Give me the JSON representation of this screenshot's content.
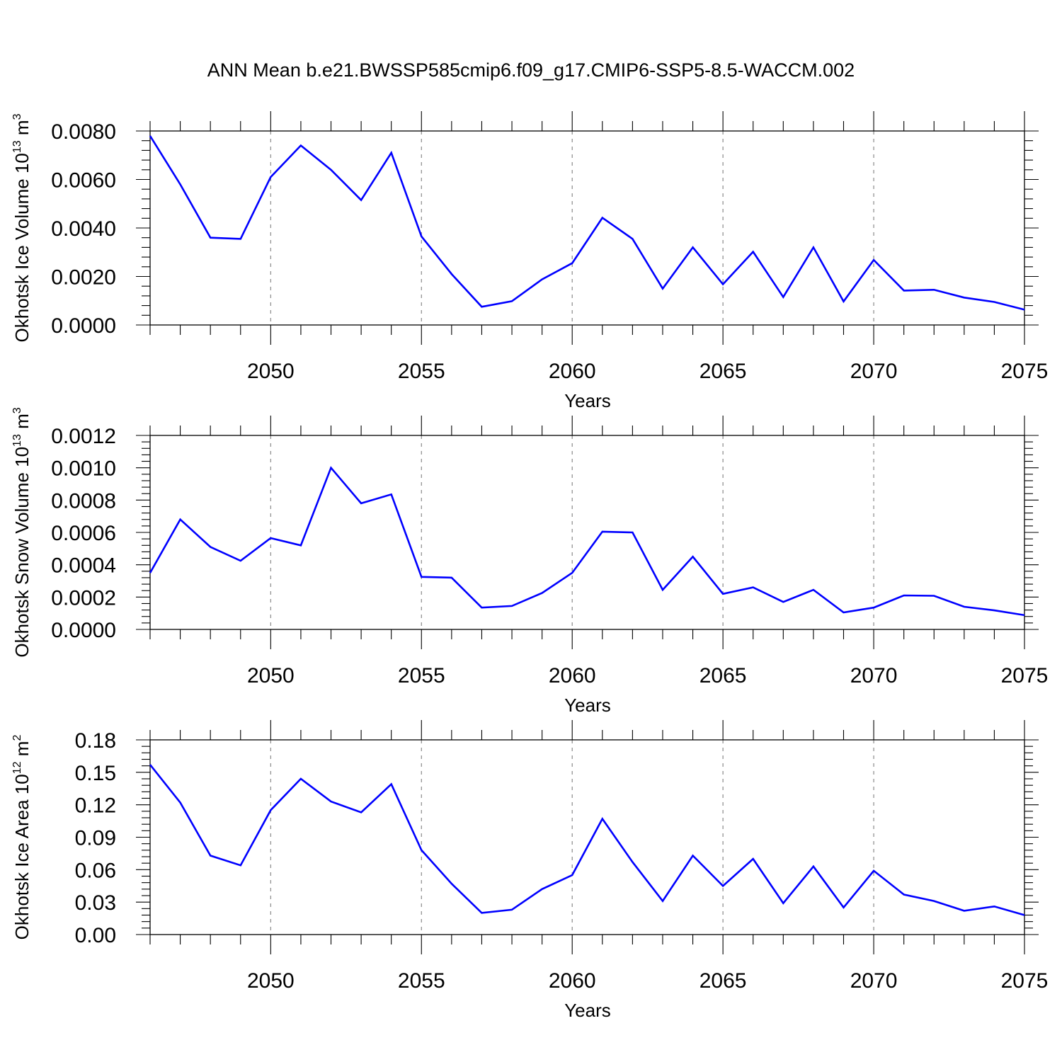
{
  "title": "ANN Mean b.e21.BWSSP585cmip6.f09_g17.CMIP6-SSP5-8.5-WACCM.002",
  "colors": {
    "line": "#0000ff",
    "frame": "#000000",
    "grid": "#8a8a8a"
  },
  "chart_data": [
    {
      "type": "line",
      "ylabel_main": "Okhotsk Ice Volume 10",
      "ylabel_exp": "13",
      "ylabel_unit": " m",
      "ylabel_unit_exp": "3",
      "xlabel": "Years",
      "xlim": [
        2046,
        2075
      ],
      "ylim": [
        0,
        0.008
      ],
      "x_ticks": [
        2050,
        2055,
        2060,
        2065,
        2070,
        2075
      ],
      "x_tick_labels": [
        "2050",
        "2055",
        "2060",
        "2065",
        "2070",
        "2075"
      ],
      "y_ticks": [
        0,
        0.002,
        0.004,
        0.006,
        0.008
      ],
      "y_tick_labels": [
        "0.0000",
        "0.0020",
        "0.0040",
        "0.0060",
        "0.0080"
      ],
      "grid": "x",
      "x": [
        2046,
        2047,
        2048,
        2049,
        2050,
        2051,
        2052,
        2053,
        2054,
        2055,
        2056,
        2057,
        2058,
        2059,
        2060,
        2061,
        2062,
        2063,
        2064,
        2065,
        2066,
        2067,
        2068,
        2069,
        2070,
        2071,
        2072,
        2073,
        2074,
        2075
      ],
      "values": [
        0.0078,
        0.0058,
        0.0036,
        0.00355,
        0.0061,
        0.0074,
        0.0064,
        0.00515,
        0.0071,
        0.00365,
        0.0021,
        0.00075,
        0.00098,
        0.00188,
        0.00255,
        0.00442,
        0.00355,
        0.0015,
        0.0032,
        0.00168,
        0.00302,
        0.00115,
        0.0032,
        0.00097,
        0.00268,
        0.00142,
        0.00145,
        0.00113,
        0.00095,
        0.00063
      ]
    },
    {
      "type": "line",
      "ylabel_main": "Okhotsk Snow Volume 10",
      "ylabel_exp": "13",
      "ylabel_unit": " m",
      "ylabel_unit_exp": "3",
      "xlabel": "Years",
      "xlim": [
        2046,
        2075
      ],
      "ylim": [
        0,
        0.0012
      ],
      "x_ticks": [
        2050,
        2055,
        2060,
        2065,
        2070,
        2075
      ],
      "x_tick_labels": [
        "2050",
        "2055",
        "2060",
        "2065",
        "2070",
        "2075"
      ],
      "y_ticks": [
        0,
        0.0002,
        0.0004,
        0.0006,
        0.0008,
        0.001,
        0.0012
      ],
      "y_tick_labels": [
        "0.0000",
        "0.0002",
        "0.0004",
        "0.0006",
        "0.0008",
        "0.0010",
        "0.0012"
      ],
      "grid": "x",
      "x": [
        2046,
        2047,
        2048,
        2049,
        2050,
        2051,
        2052,
        2053,
        2054,
        2055,
        2056,
        2057,
        2058,
        2059,
        2060,
        2061,
        2062,
        2063,
        2064,
        2065,
        2066,
        2067,
        2068,
        2069,
        2070,
        2071,
        2072,
        2073,
        2074,
        2075
      ],
      "values": [
        0.00035,
        0.00068,
        0.00051,
        0.000425,
        0.000565,
        0.00052,
        0.001,
        0.00078,
        0.000835,
        0.000325,
        0.00032,
        0.000135,
        0.000145,
        0.000225,
        0.00035,
        0.000605,
        0.0006,
        0.000245,
        0.00045,
        0.00022,
        0.00026,
        0.00017,
        0.000245,
        0.000105,
        0.000135,
        0.00021,
        0.000208,
        0.00014,
        0.000118,
        8.8e-05
      ]
    },
    {
      "type": "line",
      "ylabel_main": "Okhotsk Ice Area 10",
      "ylabel_exp": "12",
      "ylabel_unit": " m",
      "ylabel_unit_exp": "2",
      "xlabel": "Years",
      "xlim": [
        2046,
        2075
      ],
      "ylim": [
        0,
        0.18
      ],
      "x_ticks": [
        2050,
        2055,
        2060,
        2065,
        2070,
        2075
      ],
      "x_tick_labels": [
        "2050",
        "2055",
        "2060",
        "2065",
        "2070",
        "2075"
      ],
      "y_ticks": [
        0,
        0.03,
        0.06,
        0.09,
        0.12,
        0.15,
        0.18
      ],
      "y_tick_labels": [
        "0.00",
        "0.03",
        "0.06",
        "0.09",
        "0.12",
        "0.15",
        "0.18"
      ],
      "grid": "x",
      "x": [
        2046,
        2047,
        2048,
        2049,
        2050,
        2051,
        2052,
        2053,
        2054,
        2055,
        2056,
        2057,
        2058,
        2059,
        2060,
        2061,
        2062,
        2063,
        2064,
        2065,
        2066,
        2067,
        2068,
        2069,
        2070,
        2071,
        2072,
        2073,
        2074,
        2075
      ],
      "values": [
        0.157,
        0.122,
        0.073,
        0.064,
        0.115,
        0.144,
        0.123,
        0.113,
        0.139,
        0.078,
        0.047,
        0.02,
        0.023,
        0.042,
        0.055,
        0.107,
        0.067,
        0.031,
        0.073,
        0.045,
        0.07,
        0.029,
        0.063,
        0.025,
        0.059,
        0.037,
        0.031,
        0.022,
        0.026,
        0.018
      ]
    }
  ]
}
